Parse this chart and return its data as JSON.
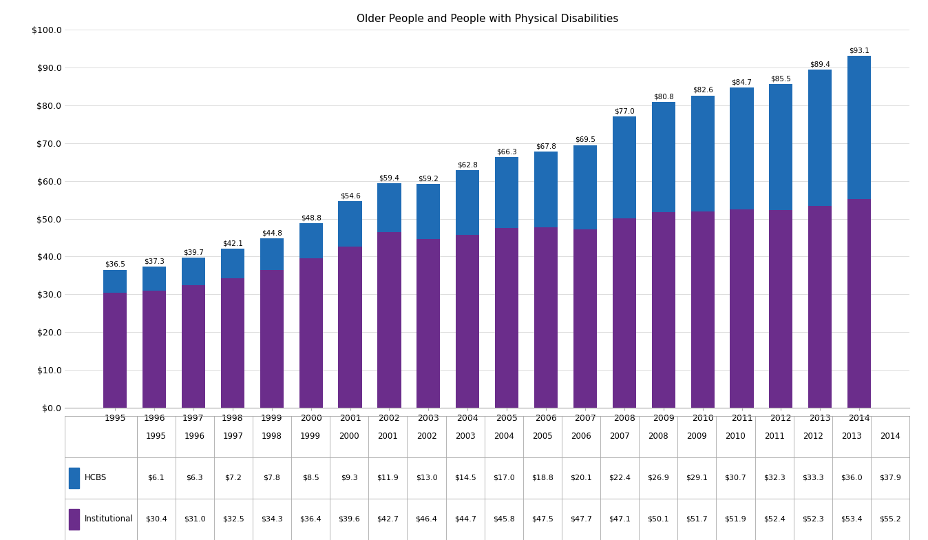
{
  "title": "Older People and People with Physical Disabilities",
  "years": [
    "1995",
    "1996",
    "1997",
    "1998",
    "1999",
    "2000",
    "2001",
    "2002",
    "2003",
    "2004",
    "2005",
    "2006",
    "2007",
    "2008",
    "2009",
    "2010",
    "2011",
    "2012",
    "2013",
    "2014"
  ],
  "hcbs": [
    6.1,
    6.3,
    7.2,
    7.8,
    8.5,
    9.3,
    11.9,
    13.0,
    14.5,
    17.0,
    18.8,
    20.1,
    22.4,
    26.9,
    29.1,
    30.7,
    32.3,
    33.3,
    36.0,
    37.9
  ],
  "institutional": [
    30.4,
    31.0,
    32.5,
    34.3,
    36.4,
    39.6,
    42.7,
    46.4,
    44.7,
    45.8,
    47.5,
    47.7,
    47.1,
    50.1,
    51.7,
    51.9,
    52.4,
    52.3,
    53.4,
    55.2
  ],
  "totals": [
    36.5,
    37.3,
    39.7,
    42.1,
    44.8,
    48.8,
    54.6,
    59.4,
    59.2,
    62.8,
    66.3,
    67.8,
    69.5,
    77.0,
    80.8,
    82.6,
    84.7,
    85.5,
    89.4,
    93.1
  ],
  "hcbs_color": "#1f6cb5",
  "institutional_color": "#6b2d8b",
  "background_color": "#ffffff",
  "ylim": [
    0,
    100
  ],
  "yticks": [
    0,
    10,
    20,
    30,
    40,
    50,
    60,
    70,
    80,
    90,
    100
  ],
  "ytick_labels": [
    "$0.0",
    "$10.0",
    "$20.0",
    "$30.0",
    "$40.0",
    "$50.0",
    "$60.0",
    "$70.0",
    "$80.0",
    "$90.0",
    "$100.0"
  ],
  "title_fontsize": 11,
  "hcbs_legend_values": [
    "$6.1",
    "$6.3",
    "$7.2",
    "$7.8",
    "$8.5",
    "$9.3",
    "$11.9",
    "$13.0",
    "$14.5",
    "$17.0",
    "$18.8",
    "$20.1",
    "$22.4",
    "$26.9",
    "$29.1",
    "$30.7",
    "$32.3",
    "$33.3",
    "$36.0",
    "$37.9"
  ],
  "inst_legend_values": [
    "$30.4",
    "$31.0",
    "$32.5",
    "$34.3",
    "$36.4",
    "$39.6",
    "$42.7",
    "$46.4",
    "$44.7",
    "$45.8",
    "$47.5",
    "$47.7",
    "$47.1",
    "$50.1",
    "$51.7",
    "$51.9",
    "$52.4",
    "$52.3",
    "$53.4",
    "$55.2"
  ]
}
